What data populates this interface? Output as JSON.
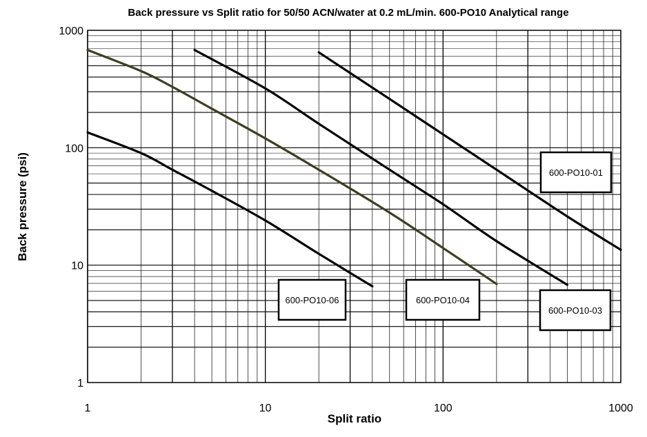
{
  "chart_data": {
    "type": "line",
    "title": "Back pressure vs Split ratio for 50/50 ACN/water at 0.2 mL/min. 600-PO10 Analytical range",
    "xlabel": "Split ratio",
    "ylabel": "Back pressure (psi)",
    "xscale": "log",
    "yscale": "log",
    "xlim": [
      1,
      1000
    ],
    "ylim": [
      1,
      1000
    ],
    "grid": true,
    "x_tick_labels": [
      "1",
      "10",
      "100",
      "1000"
    ],
    "y_tick_labels": [
      "1",
      "10",
      "100",
      "1000"
    ],
    "series": [
      {
        "name": "600-PO10-06",
        "color": "#000000",
        "points": [
          [
            1,
            135
          ],
          [
            2,
            90
          ],
          [
            3,
            65
          ],
          [
            5,
            43
          ],
          [
            10,
            24
          ],
          [
            20,
            12.5
          ],
          [
            40,
            6.6
          ]
        ]
      },
      {
        "name": "600-PO10-04",
        "color": "#3d3d22",
        "points": [
          [
            1,
            680
          ],
          [
            2,
            450
          ],
          [
            3,
            330
          ],
          [
            5,
            215
          ],
          [
            10,
            120
          ],
          [
            20,
            65
          ],
          [
            50,
            28
          ],
          [
            100,
            14
          ],
          [
            200,
            6.9
          ]
        ]
      },
      {
        "name": "600-PO10-03",
        "color": "#000000",
        "points": [
          [
            4,
            680
          ],
          [
            10,
            320
          ],
          [
            20,
            160
          ],
          [
            50,
            65
          ],
          [
            100,
            33
          ],
          [
            200,
            16
          ],
          [
            500,
            6.8
          ]
        ]
      },
      {
        "name": "600-PO10-01",
        "color": "#000000",
        "points": [
          [
            20,
            650
          ],
          [
            50,
            260
          ],
          [
            100,
            130
          ],
          [
            200,
            65
          ],
          [
            500,
            26
          ],
          [
            1000,
            13.5
          ]
        ]
      }
    ]
  }
}
